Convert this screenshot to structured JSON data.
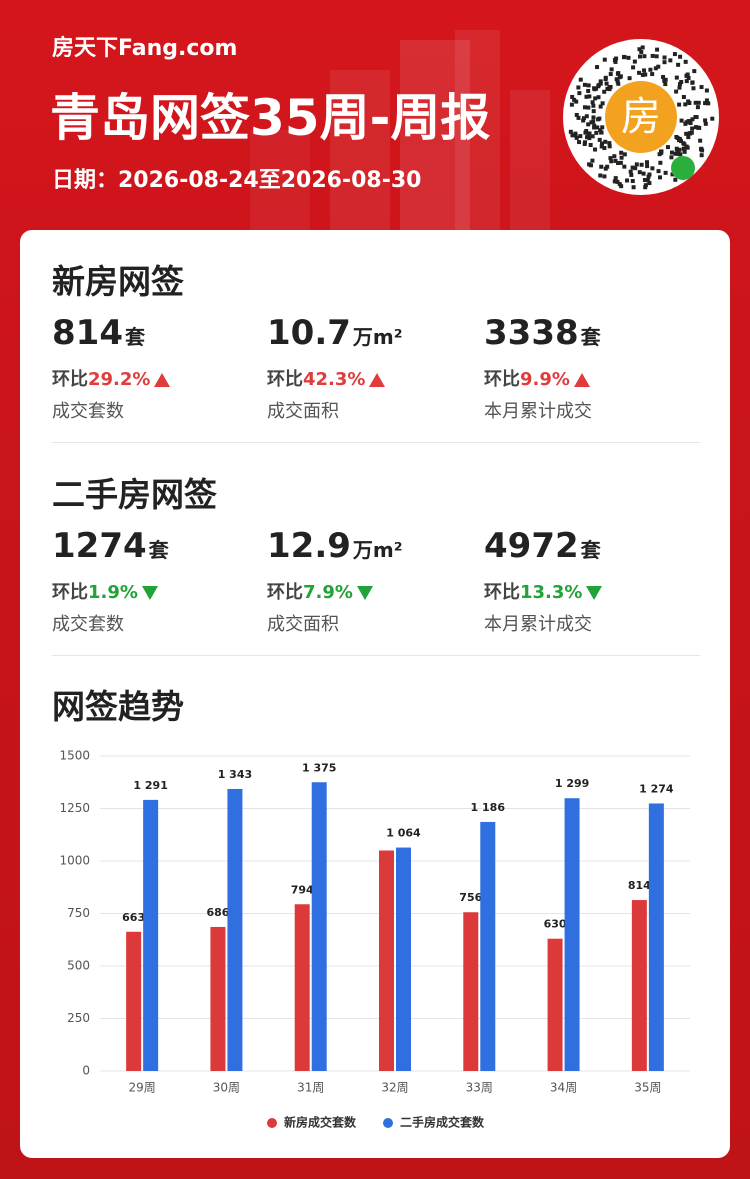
{
  "header": {
    "logo": "房天下Fang.com",
    "title": "青岛网签35周-周报",
    "date": "日期：2026-08-24至2026-08-30",
    "qr_label": "房"
  },
  "sections": [
    {
      "title": "新房网签",
      "stats": [
        {
          "value": 814,
          "unit": "套",
          "change_label": "环比",
          "change": "29.2%",
          "trend": "up",
          "caption": "成交套数"
        },
        {
          "value": 10.7,
          "unit": "万m²",
          "change_label": "环比",
          "change": "42.3%",
          "trend": "up",
          "caption": "成交面积"
        },
        {
          "value": 3338,
          "unit": "套",
          "change_label": "环比",
          "change": "9.9%",
          "trend": "up",
          "caption": "本月累计成交"
        }
      ]
    },
    {
      "title": "二手房网签",
      "stats": [
        {
          "value": 1274,
          "unit": "套",
          "change_label": "环比",
          "change": "1.9%",
          "trend": "down",
          "caption": "成交套数"
        },
        {
          "value": 12.9,
          "unit": "万m²",
          "change_label": "环比",
          "change": "7.9%",
          "trend": "down",
          "caption": "成交面积"
        },
        {
          "value": 4972,
          "unit": "套",
          "change_label": "环比",
          "change": "13.3%",
          "trend": "down",
          "caption": "本月累计成交"
        }
      ]
    }
  ],
  "chart_data": {
    "type": "bar",
    "title": "网签趋势",
    "categories": [
      "29周",
      "30周",
      "31周",
      "32周",
      "33周",
      "34周",
      "35周"
    ],
    "series": [
      {
        "name": "新房成交套数",
        "color": "#dc3a3a",
        "values": [
          663,
          686,
          794,
          1050,
          756,
          630,
          814
        ],
        "value_labels": [
          "663",
          "686",
          "794",
          null,
          "756",
          "630",
          "814"
        ]
      },
      {
        "name": "二手房成交套数",
        "color": "#2f6fe0",
        "values": [
          1291,
          1343,
          1375,
          1064,
          1186,
          1299,
          1274
        ],
        "value_labels": [
          "1 291",
          "1 343",
          "1 375",
          "1 064",
          "1 186",
          "1 299",
          "1 274"
        ]
      }
    ],
    "ylim": [
      0,
      1500
    ],
    "yticks": [
      0,
      250,
      500,
      750,
      1000,
      1250,
      1500
    ],
    "grid": true
  }
}
